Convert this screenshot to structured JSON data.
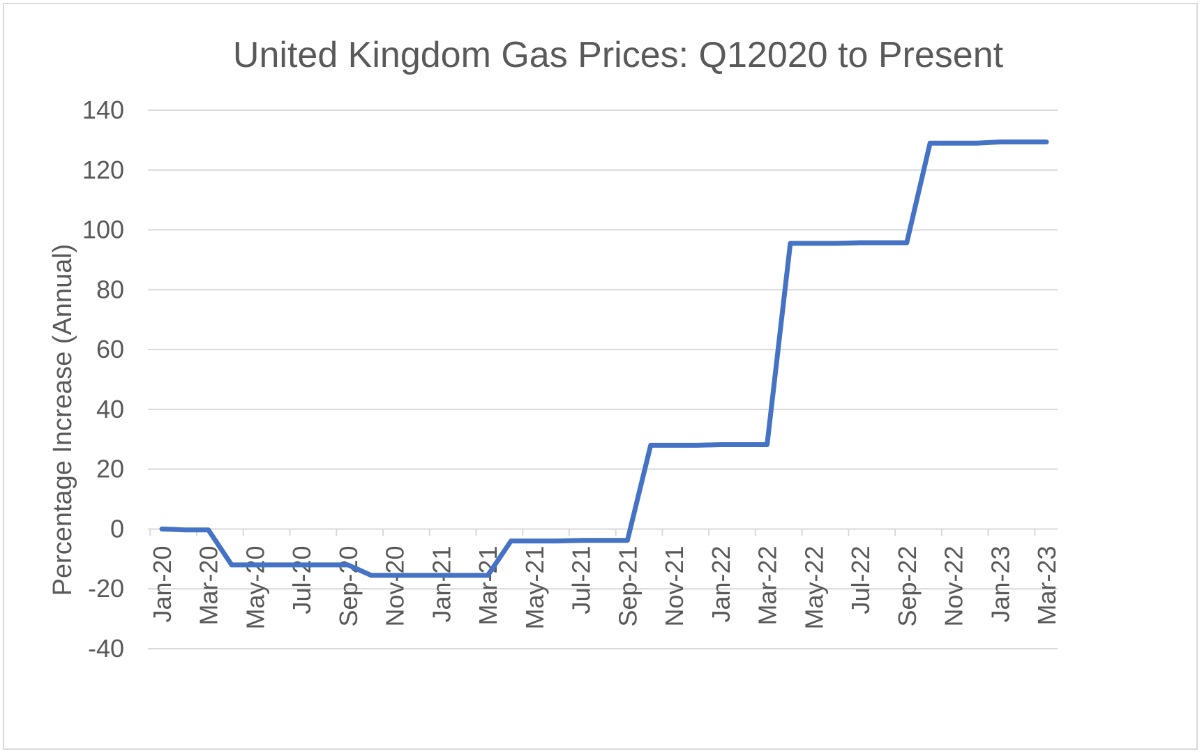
{
  "chart_data": {
    "type": "line",
    "title": "United Kingdom Gas Prices: Q12020 to Present",
    "xlabel": "",
    "ylabel": "Percentage Increase (Annual)",
    "ylim": [
      -40,
      140
    ],
    "yticks": [
      -40,
      -20,
      0,
      20,
      40,
      60,
      80,
      100,
      120,
      140
    ],
    "grid": true,
    "legend": "none",
    "x_tick_labels": [
      "Jan-20",
      "Mar-20",
      "May-20",
      "Jul-20",
      "Sep-20",
      "Nov-20",
      "Jan-21",
      "Mar-21",
      "May-21",
      "Jul-21",
      "Sep-21",
      "Nov-21",
      "Jan-22",
      "Mar-22",
      "May-22",
      "Jul-22",
      "Sep-22",
      "Nov-22",
      "Jan-23",
      "Mar-23"
    ],
    "series": [
      {
        "color": "#4472c4",
        "x": [
          "Jan-20",
          "Feb-20",
          "Mar-20",
          "Apr-20",
          "May-20",
          "Jun-20",
          "Jul-20",
          "Aug-20",
          "Sep-20",
          "Oct-20",
          "Nov-20",
          "Dec-20",
          "Jan-21",
          "Feb-21",
          "Mar-21",
          "Apr-21",
          "May-21",
          "Jun-21",
          "Jul-21",
          "Aug-21",
          "Sep-21",
          "Oct-21",
          "Nov-21",
          "Dec-21",
          "Jan-22",
          "Feb-22",
          "Mar-22",
          "Apr-22",
          "May-22",
          "Jun-22",
          "Jul-22",
          "Aug-22",
          "Sep-22",
          "Oct-22",
          "Nov-22",
          "Dec-22",
          "Jan-23",
          "Feb-23",
          "Mar-23"
        ],
        "values": [
          0,
          -0.3,
          -0.3,
          -12,
          -12,
          -12,
          -12,
          -12,
          -12,
          -15.5,
          -15.5,
          -15.5,
          -15.5,
          -15.5,
          -15.5,
          -4,
          -4,
          -4,
          -3.8,
          -3.8,
          -3.8,
          28,
          28,
          28,
          28.2,
          28.2,
          28.2,
          95.5,
          95.5,
          95.5,
          95.7,
          95.7,
          95.7,
          129,
          129,
          129,
          129.4,
          129.4,
          129.4
        ]
      }
    ]
  }
}
